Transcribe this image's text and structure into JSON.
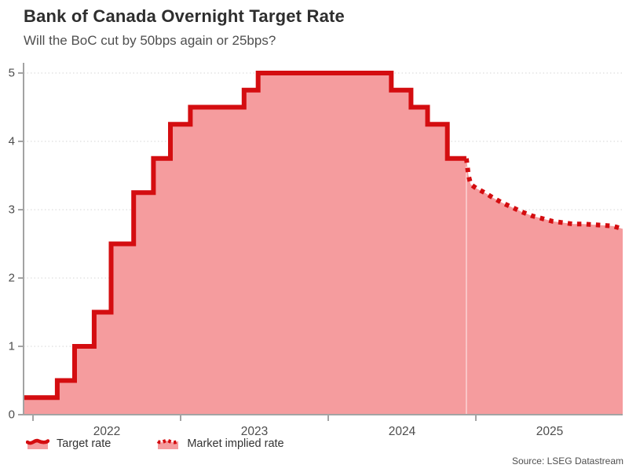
{
  "chart_data": {
    "type": "area",
    "title": "Bank of Canada Overnight Target Rate",
    "subtitle": "Will the BoC cut by 50bps again or 25bps?",
    "source": "Source: LSEG Datastream",
    "xlabel": "",
    "ylabel": "",
    "x_range": [
      2021.936,
      2025.995
    ],
    "y_range": [
      0,
      5
    ],
    "x_ticks": [
      2022,
      2023,
      2024,
      2025
    ],
    "y_ticks": [
      0,
      1,
      2,
      3,
      4,
      5
    ],
    "grid": "horizontal-dotted",
    "legend_position": "bottom-left",
    "colors": {
      "line": "#d40d10",
      "fill": "#f59c9e",
      "grid": "#dedede",
      "axis": "#a3a3a3",
      "tick_text": "#4d4d4d"
    },
    "series": [
      {
        "name": "Target rate",
        "style": "solid-step",
        "points": [
          {
            "date": "2021-12",
            "t": 2021.936,
            "rate": 0.25
          },
          {
            "date": "2022-03-02",
            "t": 2022.164,
            "rate": 0.5
          },
          {
            "date": "2022-04-13",
            "t": 2022.282,
            "rate": 1.0
          },
          {
            "date": "2022-06-01",
            "t": 2022.414,
            "rate": 1.5
          },
          {
            "date": "2022-07-13",
            "t": 2022.529,
            "rate": 2.5
          },
          {
            "date": "2022-09-07",
            "t": 2022.682,
            "rate": 3.25
          },
          {
            "date": "2022-10-26",
            "t": 2022.816,
            "rate": 3.75
          },
          {
            "date": "2022-12-07",
            "t": 2022.931,
            "rate": 4.25
          },
          {
            "date": "2023-01-25",
            "t": 2023.066,
            "rate": 4.5
          },
          {
            "date": "2023-06-07",
            "t": 2023.43,
            "rate": 4.75
          },
          {
            "date": "2023-07-12",
            "t": 2023.525,
            "rate": 5.0
          },
          {
            "date": "2024-06-05",
            "t": 2024.427,
            "rate": 4.75
          },
          {
            "date": "2024-07-24",
            "t": 2024.561,
            "rate": 4.5
          },
          {
            "date": "2024-09-04",
            "t": 2024.673,
            "rate": 4.25
          },
          {
            "date": "2024-10-23",
            "t": 2024.807,
            "rate": 3.75
          },
          {
            "date": "2024-12",
            "t": 2024.936,
            "rate": 3.75
          }
        ]
      },
      {
        "name": "Market implied rate",
        "style": "dotted",
        "points": [
          {
            "t": 2024.936,
            "rate": 3.75
          },
          {
            "t": 2024.95,
            "rate": 3.5
          },
          {
            "t": 2024.965,
            "rate": 3.37
          },
          {
            "t": 2025.005,
            "rate": 3.31
          },
          {
            "t": 2025.06,
            "rate": 3.25
          },
          {
            "t": 2025.12,
            "rate": 3.17
          },
          {
            "t": 2025.18,
            "rate": 3.1
          },
          {
            "t": 2025.25,
            "rate": 3.03
          },
          {
            "t": 2025.31,
            "rate": 2.97
          },
          {
            "t": 2025.38,
            "rate": 2.91
          },
          {
            "t": 2025.45,
            "rate": 2.87
          },
          {
            "t": 2025.52,
            "rate": 2.83
          },
          {
            "t": 2025.59,
            "rate": 2.81
          },
          {
            "t": 2025.66,
            "rate": 2.79
          },
          {
            "t": 2025.73,
            "rate": 2.79
          },
          {
            "t": 2025.8,
            "rate": 2.78
          },
          {
            "t": 2025.87,
            "rate": 2.77
          },
          {
            "t": 2025.93,
            "rate": 2.76
          },
          {
            "t": 2025.995,
            "rate": 2.72
          }
        ]
      }
    ]
  }
}
